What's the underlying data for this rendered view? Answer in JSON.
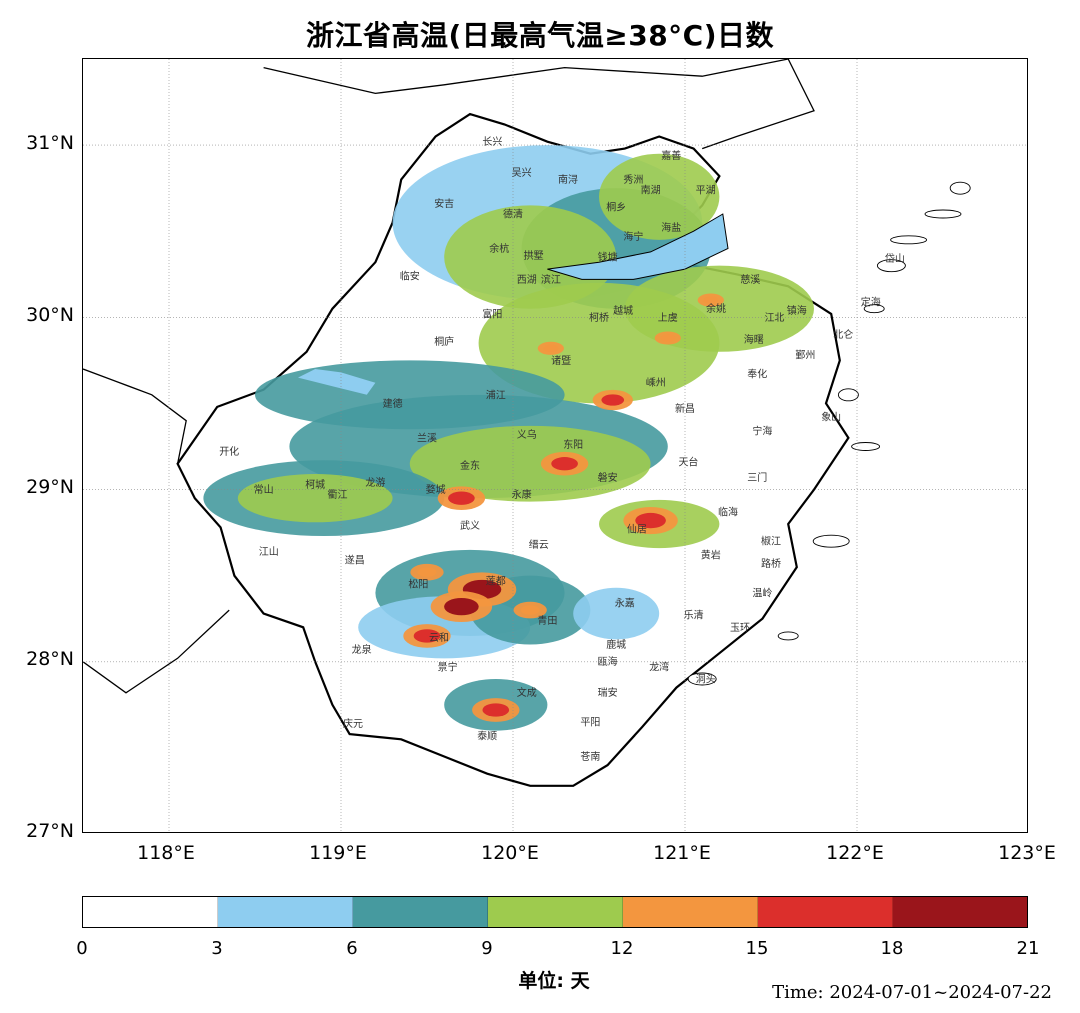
{
  "title": "浙江省高温(日最高气温≥38°C)日数",
  "map": {
    "lat_labels": [
      "31°N",
      "30°N",
      "29°N",
      "28°N",
      "27°N"
    ],
    "lon_labels": [
      "118°E",
      "119°E",
      "120°E",
      "121°E",
      "122°E",
      "123°E"
    ],
    "lon_range": [
      117.5,
      123.0
    ],
    "lat_range": [
      27.0,
      31.5
    ],
    "land_color": "#ffffff",
    "water_color": "#8ecdf0",
    "cities": [
      {
        "name": "长兴",
        "lon": 119.88,
        "lat": 31.0
      },
      {
        "name": "吴兴",
        "lon": 120.05,
        "lat": 30.82
      },
      {
        "name": "南浔",
        "lon": 120.32,
        "lat": 30.78
      },
      {
        "name": "秀洲",
        "lon": 120.7,
        "lat": 30.78
      },
      {
        "name": "嘉善",
        "lon": 120.92,
        "lat": 30.92
      },
      {
        "name": "南湖",
        "lon": 120.8,
        "lat": 30.72
      },
      {
        "name": "平湖",
        "lon": 121.12,
        "lat": 30.72
      },
      {
        "name": "安吉",
        "lon": 119.6,
        "lat": 30.64
      },
      {
        "name": "德清",
        "lon": 120.0,
        "lat": 30.58
      },
      {
        "name": "桐乡",
        "lon": 120.6,
        "lat": 30.62
      },
      {
        "name": "海盐",
        "lon": 120.92,
        "lat": 30.5
      },
      {
        "name": "海宁",
        "lon": 120.7,
        "lat": 30.45
      },
      {
        "name": "余杭",
        "lon": 119.92,
        "lat": 30.38
      },
      {
        "name": "拱墅",
        "lon": 120.12,
        "lat": 30.34
      },
      {
        "name": "钱塘",
        "lon": 120.55,
        "lat": 30.33
      },
      {
        "name": "临安",
        "lon": 119.4,
        "lat": 30.22
      },
      {
        "name": "西湖",
        "lon": 120.08,
        "lat": 30.2
      },
      {
        "name": "滨江",
        "lon": 120.22,
        "lat": 30.2
      },
      {
        "name": "慈溪",
        "lon": 121.38,
        "lat": 30.2
      },
      {
        "name": "富阳",
        "lon": 119.88,
        "lat": 30.0
      },
      {
        "name": "柯桥",
        "lon": 120.5,
        "lat": 29.98
      },
      {
        "name": "越城",
        "lon": 120.64,
        "lat": 30.02
      },
      {
        "name": "上虞",
        "lon": 120.9,
        "lat": 29.98
      },
      {
        "name": "余姚",
        "lon": 121.18,
        "lat": 30.03
      },
      {
        "name": "江北",
        "lon": 121.52,
        "lat": 29.98
      },
      {
        "name": "镇海",
        "lon": 121.65,
        "lat": 30.02
      },
      {
        "name": "定海",
        "lon": 122.08,
        "lat": 30.07
      },
      {
        "name": "岱山",
        "lon": 122.22,
        "lat": 30.32
      },
      {
        "name": "北仑",
        "lon": 121.92,
        "lat": 29.88
      },
      {
        "name": "海曙",
        "lon": 121.4,
        "lat": 29.85
      },
      {
        "name": "鄞州",
        "lon": 121.7,
        "lat": 29.76
      },
      {
        "name": "桐庐",
        "lon": 119.6,
        "lat": 29.84
      },
      {
        "name": "诸暨",
        "lon": 120.28,
        "lat": 29.73
      },
      {
        "name": "嵊州",
        "lon": 120.83,
        "lat": 29.6
      },
      {
        "name": "奉化",
        "lon": 121.42,
        "lat": 29.65
      },
      {
        "name": "建德",
        "lon": 119.3,
        "lat": 29.48
      },
      {
        "name": "浦江",
        "lon": 119.9,
        "lat": 29.53
      },
      {
        "name": "新昌",
        "lon": 121.0,
        "lat": 29.45
      },
      {
        "name": "象山",
        "lon": 121.85,
        "lat": 29.4
      },
      {
        "name": "宁海",
        "lon": 121.45,
        "lat": 29.32
      },
      {
        "name": "兰溪",
        "lon": 119.5,
        "lat": 29.28
      },
      {
        "name": "义乌",
        "lon": 120.08,
        "lat": 29.3
      },
      {
        "name": "东阳",
        "lon": 120.35,
        "lat": 29.24
      },
      {
        "name": "开化",
        "lon": 118.35,
        "lat": 29.2
      },
      {
        "name": "天台",
        "lon": 121.02,
        "lat": 29.14
      },
      {
        "name": "三门",
        "lon": 121.42,
        "lat": 29.05
      },
      {
        "name": "金东",
        "lon": 119.75,
        "lat": 29.12
      },
      {
        "name": "磐安",
        "lon": 120.55,
        "lat": 29.05
      },
      {
        "name": "常山",
        "lon": 118.55,
        "lat": 28.98
      },
      {
        "name": "柯城",
        "lon": 118.85,
        "lat": 29.01
      },
      {
        "name": "衢江",
        "lon": 118.98,
        "lat": 28.95
      },
      {
        "name": "龙游",
        "lon": 119.2,
        "lat": 29.02
      },
      {
        "name": "婺城",
        "lon": 119.55,
        "lat": 28.98
      },
      {
        "name": "永康",
        "lon": 120.05,
        "lat": 28.95
      },
      {
        "name": "临海",
        "lon": 121.25,
        "lat": 28.85
      },
      {
        "name": "武义",
        "lon": 119.75,
        "lat": 28.77
      },
      {
        "name": "仙居",
        "lon": 120.72,
        "lat": 28.75
      },
      {
        "name": "缙云",
        "lon": 120.15,
        "lat": 28.66
      },
      {
        "name": "椒江",
        "lon": 121.5,
        "lat": 28.68
      },
      {
        "name": "黄岩",
        "lon": 121.15,
        "lat": 28.6
      },
      {
        "name": "江山",
        "lon": 118.58,
        "lat": 28.62
      },
      {
        "name": "遂昌",
        "lon": 119.08,
        "lat": 28.57
      },
      {
        "name": "路桥",
        "lon": 121.5,
        "lat": 28.55
      },
      {
        "name": "莲都",
        "lon": 119.9,
        "lat": 28.45
      },
      {
        "name": "松阳",
        "lon": 119.45,
        "lat": 28.43
      },
      {
        "name": "永嘉",
        "lon": 120.65,
        "lat": 28.32
      },
      {
        "name": "温岭",
        "lon": 121.45,
        "lat": 28.38
      },
      {
        "name": "乐清",
        "lon": 121.05,
        "lat": 28.25
      },
      {
        "name": "青田",
        "lon": 120.2,
        "lat": 28.22
      },
      {
        "name": "玉环",
        "lon": 121.32,
        "lat": 28.18
      },
      {
        "name": "云和",
        "lon": 119.57,
        "lat": 28.12
      },
      {
        "name": "鹿城",
        "lon": 120.6,
        "lat": 28.08
      },
      {
        "name": "龙泉",
        "lon": 119.12,
        "lat": 28.05
      },
      {
        "name": "瓯海",
        "lon": 120.55,
        "lat": 27.98
      },
      {
        "name": "龙湾",
        "lon": 120.85,
        "lat": 27.95
      },
      {
        "name": "洞头",
        "lon": 121.12,
        "lat": 27.88
      },
      {
        "name": "景宁",
        "lon": 119.62,
        "lat": 27.95
      },
      {
        "name": "文成",
        "lon": 120.08,
        "lat": 27.8
      },
      {
        "name": "瑞安",
        "lon": 120.55,
        "lat": 27.8
      },
      {
        "name": "庆元",
        "lon": 119.07,
        "lat": 27.62
      },
      {
        "name": "平阳",
        "lon": 120.45,
        "lat": 27.63
      },
      {
        "name": "泰顺",
        "lon": 119.85,
        "lat": 27.55
      },
      {
        "name": "苍南",
        "lon": 120.45,
        "lat": 27.43
      }
    ],
    "heat_areas": [
      {
        "lon": 119.82,
        "lat": 28.42,
        "days": 19
      },
      {
        "lon": 119.7,
        "lat": 28.32,
        "days": 18
      },
      {
        "lon": 120.8,
        "lat": 28.82,
        "days": 17
      },
      {
        "lon": 119.7,
        "lat": 28.95,
        "days": 16
      },
      {
        "lon": 120.3,
        "lat": 29.15,
        "days": 16
      },
      {
        "lon": 120.58,
        "lat": 29.52,
        "days": 15
      },
      {
        "lon": 119.9,
        "lat": 27.72,
        "days": 16
      },
      {
        "lon": 119.5,
        "lat": 28.15,
        "days": 16
      },
      {
        "lon": 120.22,
        "lat": 29.82,
        "days": 13
      },
      {
        "lon": 120.9,
        "lat": 29.88,
        "days": 13
      },
      {
        "lon": 121.15,
        "lat": 30.1,
        "days": 13
      },
      {
        "lon": 120.1,
        "lat": 28.3,
        "days": 14
      },
      {
        "lon": 119.5,
        "lat": 28.52,
        "days": 14
      }
    ]
  },
  "colorbar": {
    "ticks": [
      "0",
      "3",
      "6",
      "9",
      "12",
      "15",
      "18",
      "21"
    ],
    "colors": [
      "#ffffff",
      "#8ecdf0",
      "#469a9f",
      "#9ecb4e",
      "#f3963f",
      "#dc2f2c",
      "#9a151b"
    ],
    "unit_label": "单位: 天"
  },
  "time_label": "Time: 2024-07-01~2024-07-22"
}
